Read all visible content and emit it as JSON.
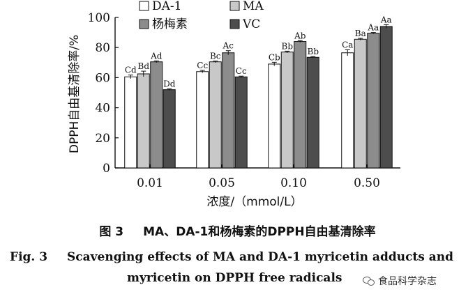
{
  "chart_data": {
    "type": "bar",
    "ylabel": "DPPH自由基清除率/%",
    "xlabel": "浓度/（mmol/L）",
    "categories": [
      "0.01",
      "0.05",
      "0.10",
      "0.50"
    ],
    "ylim": [
      0,
      100
    ],
    "yticks": [
      0,
      20,
      40,
      60,
      80,
      100
    ],
    "legend_position": "top",
    "series": [
      {
        "name": "DA-1",
        "color": "#ffffff",
        "values": [
          60.5,
          64,
          69,
          76.5
        ],
        "errors": [
          1.2,
          0.8,
          1.2,
          2.0
        ],
        "labels": [
          "Cd",
          "Cc",
          "Cb",
          "Ca"
        ]
      },
      {
        "name": "MA",
        "color": "#c8c8c8",
        "values": [
          62.5,
          70.5,
          77,
          85.5
        ],
        "errors": [
          1.8,
          0.5,
          0.6,
          0.6
        ],
        "labels": [
          "Bd",
          "Bc",
          "Bb",
          "Ba"
        ]
      },
      {
        "name": "杨梅素",
        "color": "#8c8c8c",
        "values": [
          70.5,
          76.5,
          84,
          89.5
        ],
        "errors": [
          0.6,
          1.4,
          0.6,
          0.5
        ],
        "labels": [
          "Ad",
          "Ac",
          "Ab",
          "Aa"
        ]
      },
      {
        "name": "VC",
        "color": "#4d4d4d",
        "values": [
          52,
          60.5,
          73.5,
          94
        ],
        "errors": [
          0.5,
          0.5,
          0.5,
          1.2
        ],
        "labels": [
          "Dd",
          "Cc",
          "Bb",
          "Aa"
        ]
      }
    ]
  },
  "caption": {
    "cn_number": "图 3",
    "cn_text": "MA、DA-1和杨梅素的DPPH自由基清除率",
    "en_label": "Fig. 3",
    "en_line1": "Scavenging effects of MA and DA-1 myricetin adducts and",
    "en_line2": "myricetin on DPPH free radicals"
  },
  "watermark": {
    "text": "食品科学杂志",
    "icon": "wechat-icon"
  }
}
